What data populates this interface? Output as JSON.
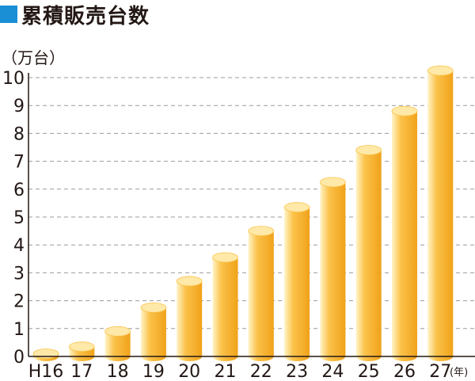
{
  "colors": {
    "title_square": "#1a8fd6",
    "bar_light": "#fff4c7",
    "bar_mid": "#fbc24a",
    "bar_dark": "#f0a21a",
    "bar_top": "#ffe9a8",
    "grid": "#9a9a9a",
    "axis": "#231815"
  },
  "chart_data": {
    "type": "bar",
    "title": "累積販売台数",
    "ylabel": "（万台）",
    "xlabel": "(年)",
    "categories": [
      "H16",
      "17",
      "18",
      "19",
      "20",
      "21",
      "22",
      "23",
      "24",
      "25",
      "26",
      "27"
    ],
    "values": [
      0.1,
      0.35,
      0.9,
      1.75,
      2.7,
      3.55,
      4.5,
      5.35,
      6.25,
      7.4,
      8.8,
      10.25
    ],
    "ylim": [
      0,
      10
    ],
    "yticks": [
      "0",
      "1",
      "2",
      "3",
      "4",
      "5",
      "6",
      "7",
      "8",
      "9",
      "10"
    ],
    "grid": true,
    "legend": "none"
  }
}
